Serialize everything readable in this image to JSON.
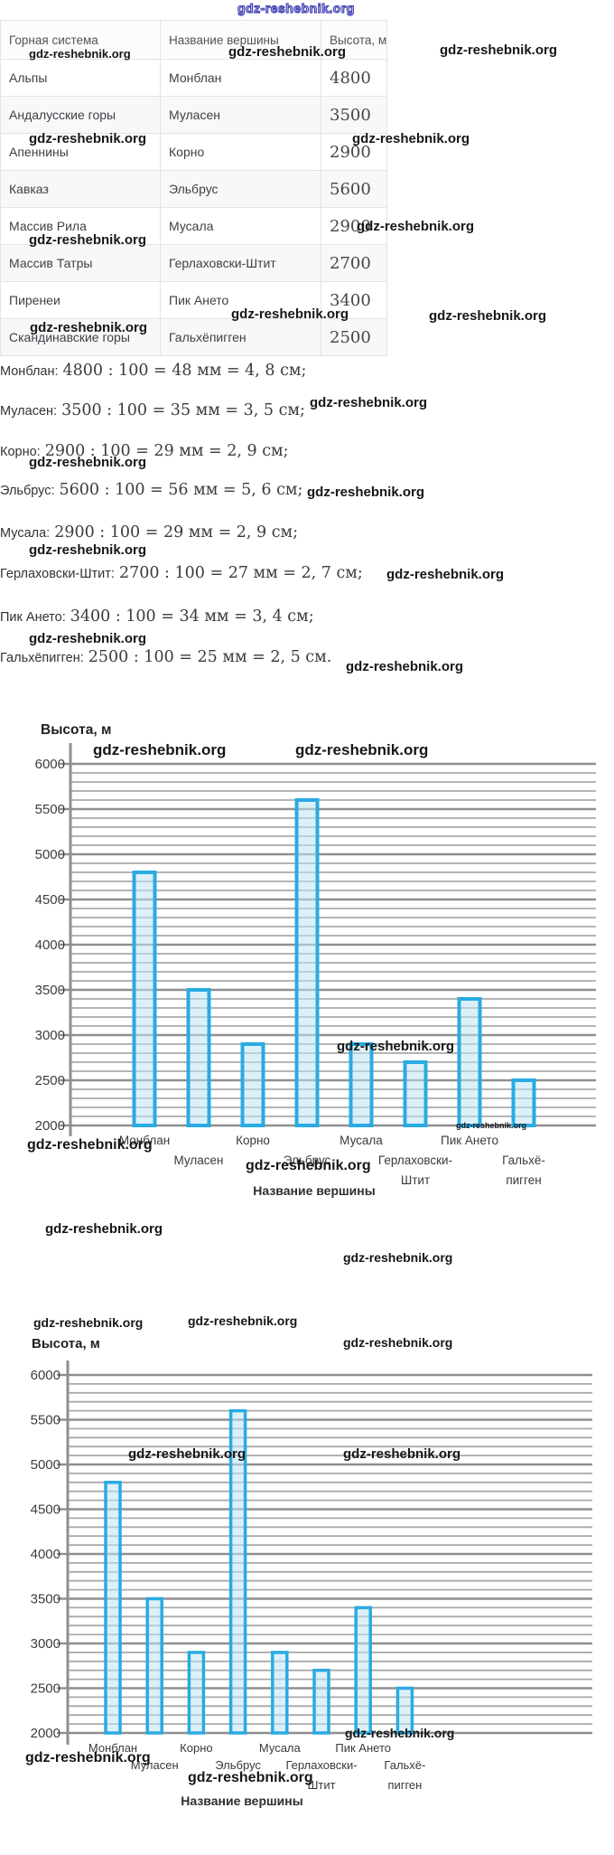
{
  "watermark_text": "gdz-reshebnik.org",
  "table": {
    "headers": [
      "Горная система",
      "Название вершины",
      "Высота, м"
    ],
    "rows": [
      [
        "Альпы",
        "Монблан",
        "4800"
      ],
      [
        "Андалусские горы",
        "Муласен",
        "3500"
      ],
      [
        "Апеннины",
        "Корно",
        "2900"
      ],
      [
        "Кавказ",
        "Эльбрус",
        "5600"
      ],
      [
        "Массив Рила",
        "Мусала",
        "2900"
      ],
      [
        "Массив Татры",
        "Герлаховски-Штит",
        "2700"
      ],
      [
        "Пиренеи",
        "Пик Ането",
        "3400"
      ],
      [
        "Скандинавские горы",
        "Гальхёпигген",
        "2500"
      ]
    ]
  },
  "calculations": [
    {
      "peak": "Монблан:",
      "expression": "4800 : 100 = 48 мм = 4, 8 см;"
    },
    {
      "peak": "Муласен:",
      "expression": "3500 : 100 = 35 мм = 3, 5 см;"
    },
    {
      "peak": "Корно:",
      "expression": "2900 : 100 = 29 мм = 2, 9 см;"
    },
    {
      "peak": "Эльбрус:",
      "expression": "5600 : 100 = 56 мм = 5, 6 см;"
    },
    {
      "peak": "Мусала:",
      "expression": "2900 : 100 = 29 мм = 2, 9 см;"
    },
    {
      "peak": "Герлаховски-Штит:",
      "expression": "2700 : 100 = 27 мм = 2, 7 см;"
    },
    {
      "peak": "Пик Ането:",
      "expression": "3400 : 100 = 34 мм = 3, 4 см;"
    },
    {
      "peak": "Гальхёпигген:",
      "expression": "2500 : 100 = 25 мм = 2, 5 см."
    }
  ],
  "chart_data": [
    {
      "type": "bar",
      "title": "Высота, м",
      "xlabel": "Название вершины",
      "categories": [
        "Монблан",
        "Муласен",
        "Корно",
        "Эльбрус",
        "Мусала",
        "Герлаховски-Штит",
        "Пик Ането",
        "Гальхёпигген"
      ],
      "x_tick_lines": [
        [
          "Монблан"
        ],
        [
          "Муласен"
        ],
        [
          "Корно"
        ],
        [
          "Эльбрус"
        ],
        [
          "Мусала"
        ],
        [
          "Герлаховски-",
          "Штит"
        ],
        [
          "Пик Ането"
        ],
        [
          "Гальхё-",
          "пигген"
        ]
      ],
      "values": [
        4800,
        3500,
        2900,
        5600,
        2900,
        2700,
        3400,
        2500
      ],
      "ylim": [
        2000,
        6000
      ],
      "grid_step": 100,
      "tick_step": 500,
      "y_tick_labels": [
        "2000",
        "2500",
        "3000",
        "3500",
        "4000",
        "4500",
        "5000",
        "5500",
        "6000"
      ],
      "legend": false,
      "bar_fill": "#bfe4f6",
      "bar_stroke": "#29abe3",
      "grid_color": "#a9a9a9",
      "axis_color": "#8f8f8f"
    },
    {
      "type": "bar",
      "title": "Высота, м",
      "xlabel": "Название вершины",
      "categories": [
        "Монблан",
        "Муласен",
        "Корно",
        "Эльбрус",
        "Мусала",
        "Герлаховски-Штит",
        "Пик Ането",
        "Гальхёпигген"
      ],
      "x_tick_lines": [
        [
          "Монблан"
        ],
        [
          "Муласен"
        ],
        [
          "Корно"
        ],
        [
          "Эльбрус"
        ],
        [
          "Мусала"
        ],
        [
          "Герлаховски-",
          "Штит"
        ],
        [
          "Пик Ането"
        ],
        [
          "Гальхё-",
          "пигген"
        ]
      ],
      "values": [
        4800,
        3500,
        2900,
        5600,
        2900,
        2700,
        3400,
        2500
      ],
      "ylim": [
        2000,
        6000
      ],
      "grid_step": 100,
      "tick_step": 500,
      "y_tick_labels": [
        "2000",
        "2500",
        "3000",
        "3500",
        "4000",
        "4500",
        "5000",
        "5500",
        "6000"
      ],
      "legend": false,
      "bar_fill": "#bfe4f6",
      "bar_stroke": "#29abe3",
      "grid_color": "#a9a9a9",
      "axis_color": "#8f8f8f"
    }
  ]
}
